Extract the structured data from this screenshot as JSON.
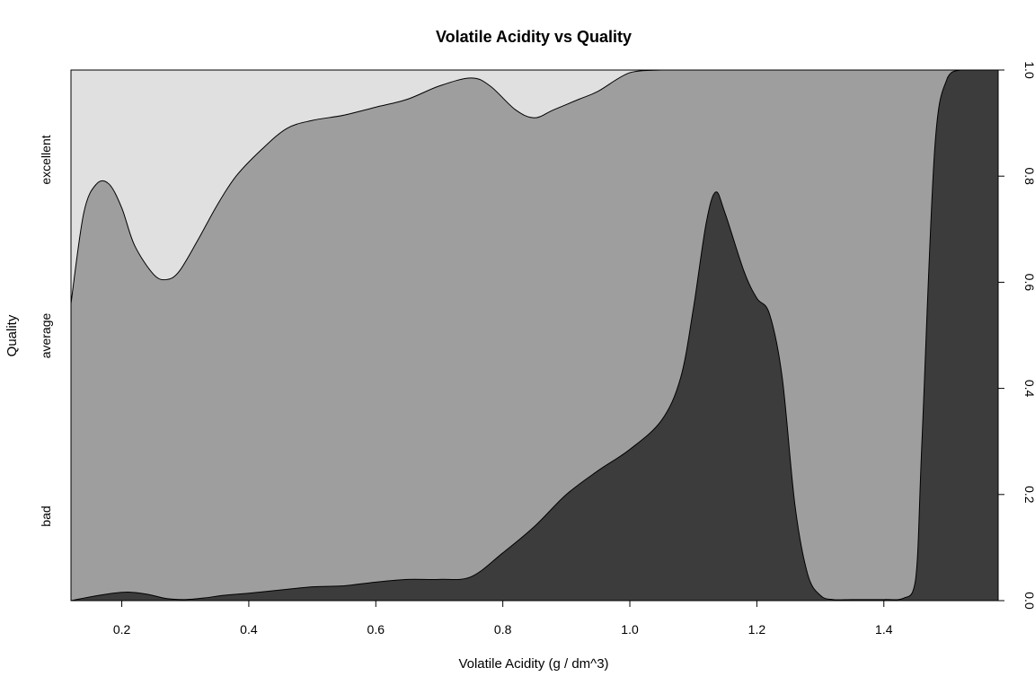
{
  "chart_data": {
    "type": "area",
    "subtype": "conditional-density (spineplot-style) stacked area",
    "title": "Volatile Acidity vs Quality",
    "xlabel": "Volatile Acidity (g / dm^3)",
    "ylabel": "Quality",
    "xlim": [
      0.12,
      1.58
    ],
    "ylim": [
      0,
      1
    ],
    "x_ticks": [
      "0.2",
      "0.4",
      "0.6",
      "0.8",
      "1.0",
      "1.2",
      "1.4"
    ],
    "y_ticks_right": [
      "0.0",
      "0.2",
      "0.4",
      "0.6",
      "0.8",
      "1.0"
    ],
    "category_labels_left": [
      "bad",
      "average",
      "excellent"
    ],
    "colors": {
      "bad": "#3c3c3c",
      "average": "#9e9e9e",
      "excellent": "#e0e0e0"
    },
    "grid": false,
    "series": [
      {
        "name": "bad",
        "boundary": "cumulative proportion at top of band",
        "x": [
          0.12,
          0.15,
          0.18,
          0.21,
          0.24,
          0.27,
          0.3,
          0.33,
          0.36,
          0.4,
          0.45,
          0.5,
          0.55,
          0.6,
          0.65,
          0.7,
          0.75,
          0.8,
          0.85,
          0.9,
          0.95,
          1.0,
          1.05,
          1.08,
          1.1,
          1.12,
          1.135,
          1.15,
          1.18,
          1.2,
          1.22,
          1.24,
          1.26,
          1.28,
          1.3,
          1.32,
          1.35,
          1.4,
          1.43,
          1.45,
          1.46,
          1.48,
          1.5,
          1.52,
          1.55,
          1.58
        ],
        "y": [
          0.0,
          0.007,
          0.013,
          0.016,
          0.012,
          0.004,
          0.002,
          0.005,
          0.01,
          0.014,
          0.02,
          0.026,
          0.028,
          0.035,
          0.04,
          0.04,
          0.045,
          0.09,
          0.14,
          0.2,
          0.245,
          0.285,
          0.34,
          0.42,
          0.55,
          0.71,
          0.77,
          0.73,
          0.62,
          0.57,
          0.54,
          0.42,
          0.18,
          0.05,
          0.01,
          0.002,
          0.002,
          0.002,
          0.004,
          0.04,
          0.3,
          0.85,
          0.985,
          1.0,
          1.0,
          1.0
        ]
      },
      {
        "name": "average",
        "boundary": "cumulative proportion at top of band",
        "x": [
          0.12,
          0.14,
          0.16,
          0.18,
          0.2,
          0.22,
          0.25,
          0.27,
          0.29,
          0.32,
          0.35,
          0.38,
          0.42,
          0.46,
          0.5,
          0.55,
          0.6,
          0.65,
          0.7,
          0.75,
          0.78,
          0.82,
          0.85,
          0.88,
          0.92,
          0.95,
          1.0,
          1.05,
          1.1,
          1.2,
          1.3,
          1.4,
          1.5,
          1.58
        ],
        "y": [
          0.56,
          0.73,
          0.785,
          0.785,
          0.74,
          0.67,
          0.615,
          0.605,
          0.62,
          0.68,
          0.745,
          0.8,
          0.85,
          0.89,
          0.905,
          0.915,
          0.93,
          0.945,
          0.97,
          0.985,
          0.97,
          0.925,
          0.91,
          0.925,
          0.945,
          0.96,
          0.995,
          1.0,
          1.0,
          1.0,
          1.0,
          1.0,
          1.0,
          1.0
        ]
      },
      {
        "name": "excellent",
        "boundary": "cumulative proportion at top of band",
        "x": [
          0.12,
          1.58
        ],
        "y": [
          1.0,
          1.0
        ]
      }
    ]
  }
}
